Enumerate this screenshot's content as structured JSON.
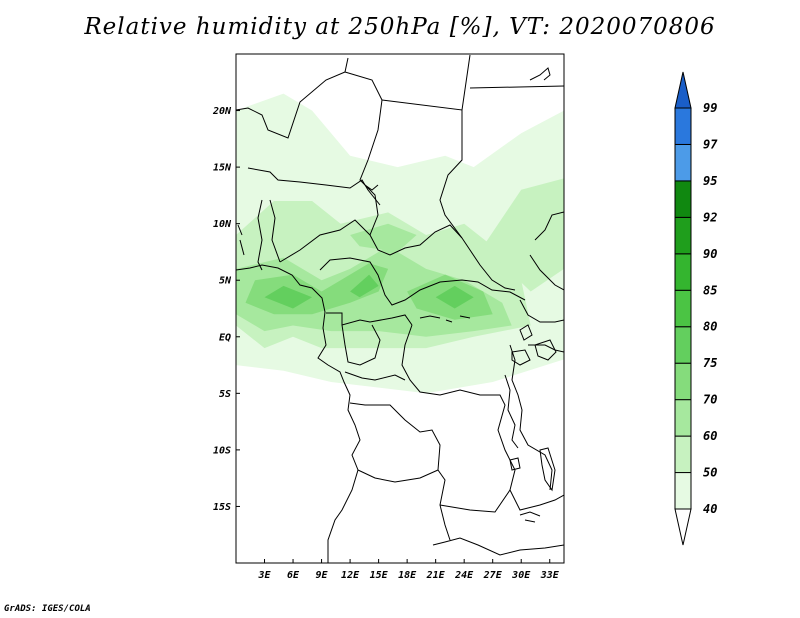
{
  "title": "Relative humidity at 250hPa [%], VT: 2020070806",
  "credit": "GrADS: IGES/COLA",
  "map": {
    "lon_range": [
      0,
      34.5
    ],
    "lat_range": [
      -20,
      25
    ],
    "lon_ticks": [
      {
        "value": 3,
        "label": "3E"
      },
      {
        "value": 6,
        "label": "6E"
      },
      {
        "value": 9,
        "label": "9E"
      },
      {
        "value": 12,
        "label": "12E"
      },
      {
        "value": 15,
        "label": "15E"
      },
      {
        "value": 18,
        "label": "18E"
      },
      {
        "value": 21,
        "label": "21E"
      },
      {
        "value": 24,
        "label": "24E"
      },
      {
        "value": 27,
        "label": "27E"
      },
      {
        "value": 30,
        "label": "30E"
      },
      {
        "value": 33,
        "label": "33E"
      }
    ],
    "lat_ticks": [
      {
        "value": 20,
        "label": "20N"
      },
      {
        "value": 15,
        "label": "15N"
      },
      {
        "value": 10,
        "label": "10N"
      },
      {
        "value": 5,
        "label": "5N"
      },
      {
        "value": 0,
        "label": "EQ"
      },
      {
        "value": -5,
        "label": "5S"
      },
      {
        "value": -10,
        "label": "10S"
      },
      {
        "value": -15,
        "label": "15S"
      }
    ]
  },
  "colorbar": {
    "levels": [
      "40",
      "50",
      "60",
      "70",
      "75",
      "80",
      "85",
      "90",
      "92",
      "95",
      "97",
      "99"
    ],
    "colors": [
      "#ffffff",
      "#e6fae3",
      "#c7f2c0",
      "#a6e89e",
      "#85dc7c",
      "#63cf5e",
      "#4bc444",
      "#34b52f",
      "#1f9e1c",
      "#108810",
      "#4c9be8",
      "#2a78dd",
      "#1a5ec8"
    ]
  },
  "humidity_regions": [
    {
      "level": 1,
      "polys": [
        [
          [
            0,
            5
          ],
          [
            0,
            20
          ],
          [
            5,
            21.5
          ],
          [
            8,
            20
          ],
          [
            12,
            16
          ],
          [
            17,
            15
          ],
          [
            22,
            16
          ],
          [
            25,
            15
          ],
          [
            30,
            18
          ],
          [
            34.5,
            20
          ],
          [
            34.5,
            -2
          ],
          [
            27,
            -4
          ],
          [
            20,
            -5
          ],
          [
            10,
            -4
          ],
          [
            5,
            -3
          ],
          [
            0,
            -2.5
          ]
        ]
      ]
    },
    {
      "level": 2,
      "polys": [
        [
          [
            0,
            1
          ],
          [
            0,
            9
          ],
          [
            4,
            12
          ],
          [
            8,
            12
          ],
          [
            11,
            10
          ],
          [
            16,
            11
          ],
          [
            20,
            9
          ],
          [
            24,
            10
          ],
          [
            27,
            8
          ],
          [
            30,
            5
          ],
          [
            31,
            1
          ],
          [
            25,
            0
          ],
          [
            20,
            -1
          ],
          [
            14,
            -1
          ],
          [
            9,
            -1
          ],
          [
            6,
            0
          ],
          [
            3,
            -1
          ]
        ],
        [
          [
            26,
            8
          ],
          [
            30,
            13
          ],
          [
            34.5,
            14
          ],
          [
            34.5,
            6
          ],
          [
            31,
            4
          ]
        ]
      ]
    },
    {
      "level": 3,
      "polys": [
        [
          [
            0,
            2
          ],
          [
            0,
            6
          ],
          [
            5,
            7
          ],
          [
            9,
            5
          ],
          [
            12,
            6
          ],
          [
            16,
            8
          ],
          [
            20,
            6
          ],
          [
            24,
            5
          ],
          [
            28,
            3
          ],
          [
            29,
            1
          ],
          [
            25,
            0.5
          ],
          [
            20,
            0
          ],
          [
            15,
            0.5
          ],
          [
            10,
            0.5
          ],
          [
            6,
            1
          ],
          [
            3,
            0.5
          ]
        ],
        [
          [
            12,
            9
          ],
          [
            16,
            10
          ],
          [
            19,
            9
          ],
          [
            17,
            7.5
          ],
          [
            13,
            8
          ]
        ]
      ]
    },
    {
      "level": 4,
      "polys": [
        [
          [
            1,
            3
          ],
          [
            2,
            5
          ],
          [
            6,
            5.5
          ],
          [
            9,
            4
          ],
          [
            11,
            5
          ],
          [
            14,
            6.5
          ],
          [
            16,
            6
          ],
          [
            15,
            4
          ],
          [
            12,
            3
          ],
          [
            8,
            2
          ],
          [
            4,
            2
          ]
        ],
        [
          [
            18,
            4
          ],
          [
            22,
            5.5
          ],
          [
            26,
            4
          ],
          [
            27,
            2
          ],
          [
            23,
            1.5
          ],
          [
            19,
            2.5
          ]
        ]
      ]
    },
    {
      "level": 5,
      "polys": [
        [
          [
            3,
            3.5
          ],
          [
            5,
            4.5
          ],
          [
            8,
            3.5
          ],
          [
            6,
            2.5
          ]
        ],
        [
          [
            12,
            4
          ],
          [
            14,
            5.5
          ],
          [
            15,
            4.5
          ],
          [
            13,
            3.5
          ]
        ],
        [
          [
            21,
            3.5
          ],
          [
            23,
            4.5
          ],
          [
            25,
            3.5
          ],
          [
            23,
            2.5
          ]
        ]
      ]
    }
  ]
}
